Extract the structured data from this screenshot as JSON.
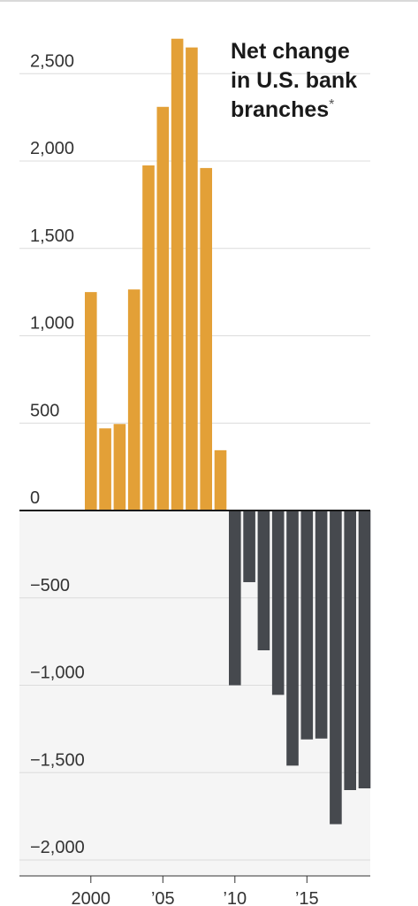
{
  "chart_data": {
    "type": "bar",
    "title_lines": [
      "Net change",
      "in U.S. bank",
      "branches"
    ],
    "title_footnote_mark": "*",
    "xlabel": "",
    "ylabel": "",
    "ylim": [
      -2000,
      2700
    ],
    "y_ticks": [
      2500,
      2000,
      1500,
      1000,
      500,
      0,
      -500,
      -1000,
      -1500,
      -2000
    ],
    "y_tick_labels": [
      "2,500",
      "2,000",
      "1,500",
      "1,000",
      "500",
      "0",
      "−500",
      "−1,000",
      "−1,500",
      "−2,000"
    ],
    "x_tick_labels": [
      {
        "year": 2000,
        "label": "2000"
      },
      {
        "year": 2005,
        "label": "’05"
      },
      {
        "year": 2010,
        "label": "’10"
      },
      {
        "year": 2015,
        "label": "’15"
      }
    ],
    "categories": [
      2000,
      2001,
      2002,
      2003,
      2004,
      2005,
      2006,
      2007,
      2008,
      2009,
      2010,
      2011,
      2012,
      2013,
      2014,
      2015,
      2016,
      2017,
      2018,
      2019
    ],
    "values": [
      1250,
      470,
      495,
      1265,
      1975,
      2310,
      2700,
      2650,
      1960,
      345,
      -1000,
      -410,
      -800,
      -1055,
      -1460,
      -1310,
      -1305,
      -1795,
      -1600,
      -1590
    ],
    "positive_color": "#e3a037",
    "negative_color": "#46494e",
    "negative_region_color": "#f5f5f5",
    "grid": true
  }
}
